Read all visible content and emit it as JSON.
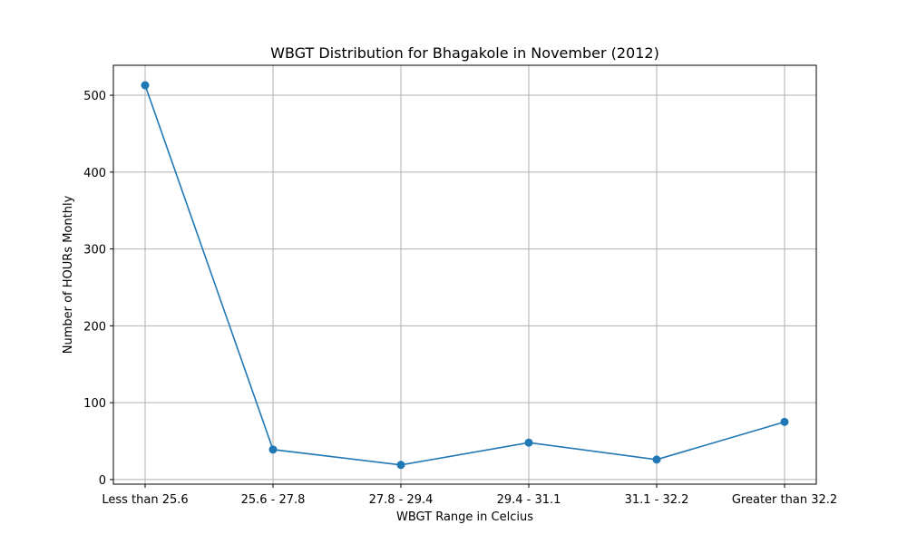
{
  "chart_data": {
    "type": "line",
    "title": "WBGT Distribution for Bhagakole in November (2012)",
    "xlabel": "WBGT Range in Celcius",
    "ylabel": "Number of HOURs Monthly",
    "categories": [
      "Less than 25.6",
      "25.6 - 27.8",
      "27.8 - 29.4",
      "29.4 - 31.1",
      "31.1 - 32.2",
      "Greater than 32.2"
    ],
    "series": [
      {
        "values": [
          513,
          39,
          19,
          48,
          26,
          75
        ]
      }
    ],
    "ylim": [
      -6,
      539
    ],
    "yticks": [
      0,
      100,
      200,
      300,
      400,
      500
    ],
    "grid": true,
    "line_color": "#1f77b4",
    "marker": "circle"
  }
}
